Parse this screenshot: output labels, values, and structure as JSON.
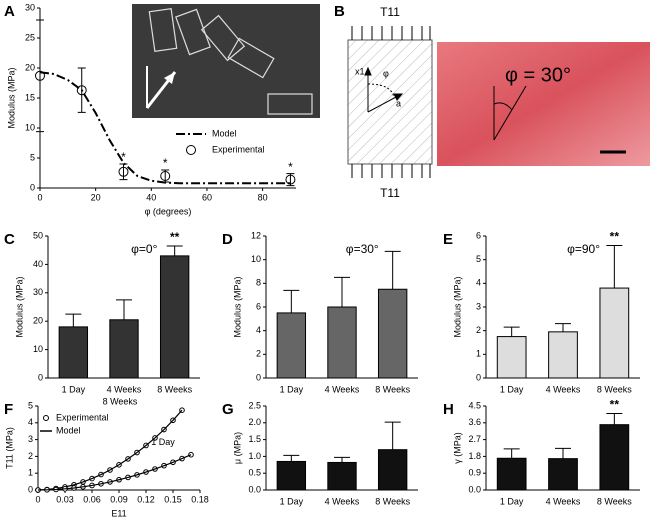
{
  "panels": [
    "A",
    "B",
    "C",
    "D",
    "E",
    "F",
    "G",
    "H"
  ],
  "diagram": {
    "top_load": "T11",
    "bottom_load": "T11",
    "axis_label": "x1",
    "angle_label": "φ",
    "direction_label": "a",
    "image_label": "φ = 30°"
  },
  "chart_data": [
    {
      "type": "scatter",
      "x_label": "φ (degrees)",
      "y_label": "Modulus (MPa)",
      "xlim": [
        0,
        92
      ],
      "xticks": [
        0,
        20,
        40,
        60,
        80
      ],
      "ylim": [
        0,
        30
      ],
      "yticks": [
        0,
        5,
        10,
        15,
        20,
        25,
        30
      ],
      "series": [
        {
          "name": "Model",
          "color": "#000000",
          "style": "dashdot",
          "x": [
            0,
            5,
            10,
            15,
            20,
            25,
            30,
            35,
            40,
            45,
            50,
            60,
            70,
            80,
            90
          ],
          "values": [
            19.3,
            19,
            18,
            16.3,
            12.5,
            8,
            4.2,
            2.0,
            1.2,
            0.9,
            0.8,
            0.8,
            0.8,
            0.8,
            0.8
          ]
        },
        {
          "name": "Experimental",
          "color": "#000000",
          "style": "points",
          "x": [
            0,
            15,
            30,
            45,
            90
          ],
          "values": [
            18.7,
            16.3,
            2.7,
            2.0,
            1.4
          ],
          "errors": [
            9.3,
            3.7,
            1.3,
            1.0,
            1.0
          ],
          "significance": [
            null,
            null,
            "*",
            "*",
            "*"
          ]
        }
      ]
    },
    {
      "type": "bar",
      "annotation": "φ=0°",
      "y_label": "Modulus (MPa)",
      "color": "#333333",
      "categories": [
        "1 Day",
        "4 Weeks",
        "8 Weeks"
      ],
      "values": [
        18,
        20.5,
        43
      ],
      "errors": [
        4.5,
        7,
        3.5
      ],
      "significance": [
        null,
        null,
        "**"
      ],
      "ylim": [
        0,
        50
      ],
      "yticks": [
        0,
        10,
        20,
        30,
        40,
        50
      ]
    },
    {
      "type": "bar",
      "annotation": "φ=30°",
      "y_label": "Modulus (MPa)",
      "color": "#666666",
      "categories": [
        "1 Day",
        "4 Weeks",
        "8 Weeks"
      ],
      "values": [
        5.5,
        6,
        7.5
      ],
      "errors": [
        1.9,
        2.5,
        3.2
      ],
      "ylim": [
        0,
        12
      ],
      "yticks": [
        0,
        2,
        4,
        6,
        8,
        10,
        12
      ]
    },
    {
      "type": "bar",
      "annotation": "φ=90°",
      "y_label": "Modulus (MPa)",
      "color": "#dddddd",
      "categories": [
        "1 Day",
        "4 Weeks",
        "8 Weeks"
      ],
      "values": [
        1.75,
        1.95,
        3.8
      ],
      "errors": [
        0.4,
        0.35,
        1.8
      ],
      "significance": [
        null,
        null,
        "**"
      ],
      "ylim": [
        0,
        6
      ],
      "yticks": [
        0,
        1,
        2,
        3,
        4,
        5,
        6
      ]
    },
    {
      "type": "line",
      "x_label": "E11",
      "y_label": "T11 (MPa)",
      "legend": [
        "Experimental",
        "Model"
      ],
      "xlim": [
        0,
        0.18
      ],
      "xticks": [
        0,
        0.03,
        0.06,
        0.09,
        0.12,
        0.15,
        0.18
      ],
      "ylim": [
        0,
        5
      ],
      "yticks": [
        0,
        1,
        2,
        3,
        4,
        5
      ],
      "x": [
        0,
        0.01,
        0.02,
        0.03,
        0.04,
        0.05,
        0.06,
        0.07,
        0.08,
        0.09,
        0.1,
        0.11,
        0.12,
        0.13,
        0.14,
        0.15,
        0.16,
        0.17
      ],
      "series": [
        {
          "name": "8 Weeks",
          "color": "#000000",
          "values": [
            0,
            0.03,
            0.09,
            0.18,
            0.31,
            0.48,
            0.68,
            0.92,
            1.19,
            1.5,
            1.85,
            2.23,
            2.65,
            3.1,
            3.6,
            4.15,
            4.75,
            null
          ]
        },
        {
          "name": "1 Day",
          "color": "#000000",
          "values": [
            0,
            0.01,
            0.03,
            0.07,
            0.12,
            0.19,
            0.27,
            0.37,
            0.48,
            0.61,
            0.75,
            0.9,
            1.07,
            1.25,
            1.45,
            1.65,
            1.87,
            2.1
          ]
        }
      ]
    },
    {
      "type": "bar",
      "y_label": "μ (MPa)",
      "color": "#111111",
      "categories": [
        "1 Day",
        "4 Weeks",
        "8 Weeks"
      ],
      "values": [
        0.85,
        0.82,
        1.2
      ],
      "errors": [
        0.18,
        0.15,
        0.82
      ],
      "ylim": [
        0,
        2.5
      ],
      "yticks": [
        {
          "value": 0,
          "label": "0.0"
        },
        {
          "value": 0.5,
          "label": "0.5"
        },
        {
          "value": 1,
          "label": "1.0"
        },
        {
          "value": 1.5,
          "label": "1.5"
        },
        {
          "value": 2,
          "label": "2.0"
        },
        {
          "value": 2.5,
          "label": "2.5"
        }
      ]
    },
    {
      "type": "bar",
      "y_label": "γ (MPa)",
      "color": "#111111",
      "categories": [
        "1 Day",
        "4 Weeks",
        "8 Weeks"
      ],
      "values": [
        1.7,
        1.68,
        3.5
      ],
      "errors": [
        0.5,
        0.55,
        0.6
      ],
      "significance": [
        null,
        null,
        "**"
      ],
      "ylim": [
        0,
        4.5
      ],
      "yticks": [
        {
          "value": 0,
          "label": "0.0"
        },
        0.9,
        1.8,
        2.7,
        3.6,
        4.5
      ]
    }
  ]
}
